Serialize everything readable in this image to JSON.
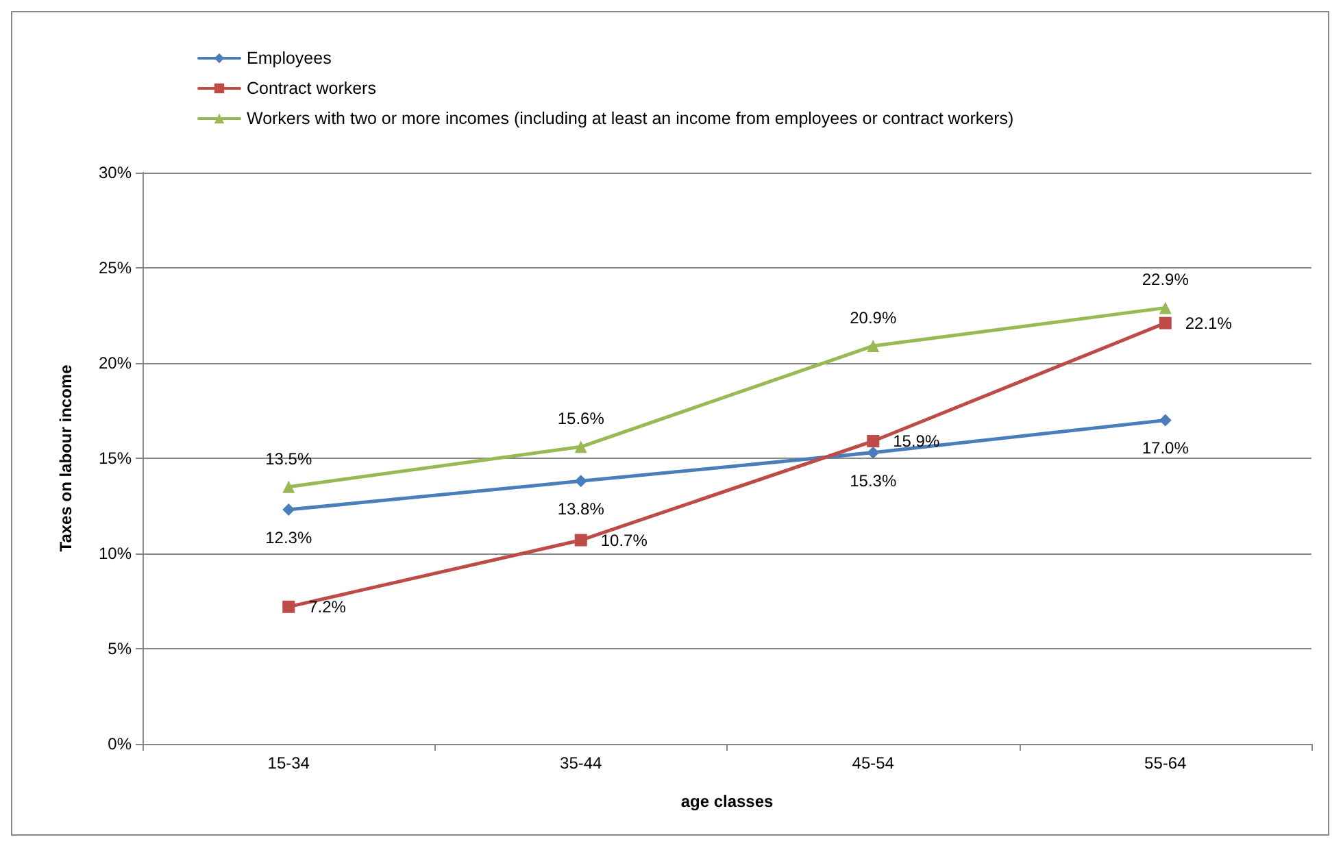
{
  "chart_data": {
    "type": "line",
    "xlabel": "age classes",
    "ylabel": "Taxes on labour income",
    "categories": [
      "15-34",
      "35-44",
      "45-54",
      "55-64"
    ],
    "series": [
      {
        "name": "Employees",
        "color": "#4a7ebb",
        "marker": "diamond",
        "values": [
          12.3,
          13.8,
          15.3,
          17.0
        ],
        "value_labels": [
          "12.3%",
          "13.8%",
          "15.3%",
          "17.0%"
        ]
      },
      {
        "name": "Contract workers",
        "color": "#be4b48",
        "marker": "square",
        "values": [
          7.2,
          10.7,
          15.9,
          22.1
        ],
        "value_labels": [
          "7.2%",
          "10.7%",
          "15.9%",
          "22.1%"
        ]
      },
      {
        "name": "Workers with two or more incomes (including at least an income from employees or contract workers)",
        "color": "#98b954",
        "marker": "triangle",
        "values": [
          13.5,
          15.6,
          20.9,
          22.9
        ],
        "value_labels": [
          "13.5%",
          "15.6%",
          "20.9%",
          "22.9%"
        ]
      }
    ],
    "ylim": [
      0,
      30
    ],
    "yticks": [
      {
        "value": 0,
        "label": "0%"
      },
      {
        "value": 5,
        "label": "5%"
      },
      {
        "value": 10,
        "label": "10%"
      },
      {
        "value": 15,
        "label": "15%"
      },
      {
        "value": 20,
        "label": "20%"
      },
      {
        "value": 25,
        "label": "25%"
      },
      {
        "value": 30,
        "label": "30%"
      }
    ],
    "grid": "y",
    "legend": "top left",
    "line_style": "solid"
  }
}
